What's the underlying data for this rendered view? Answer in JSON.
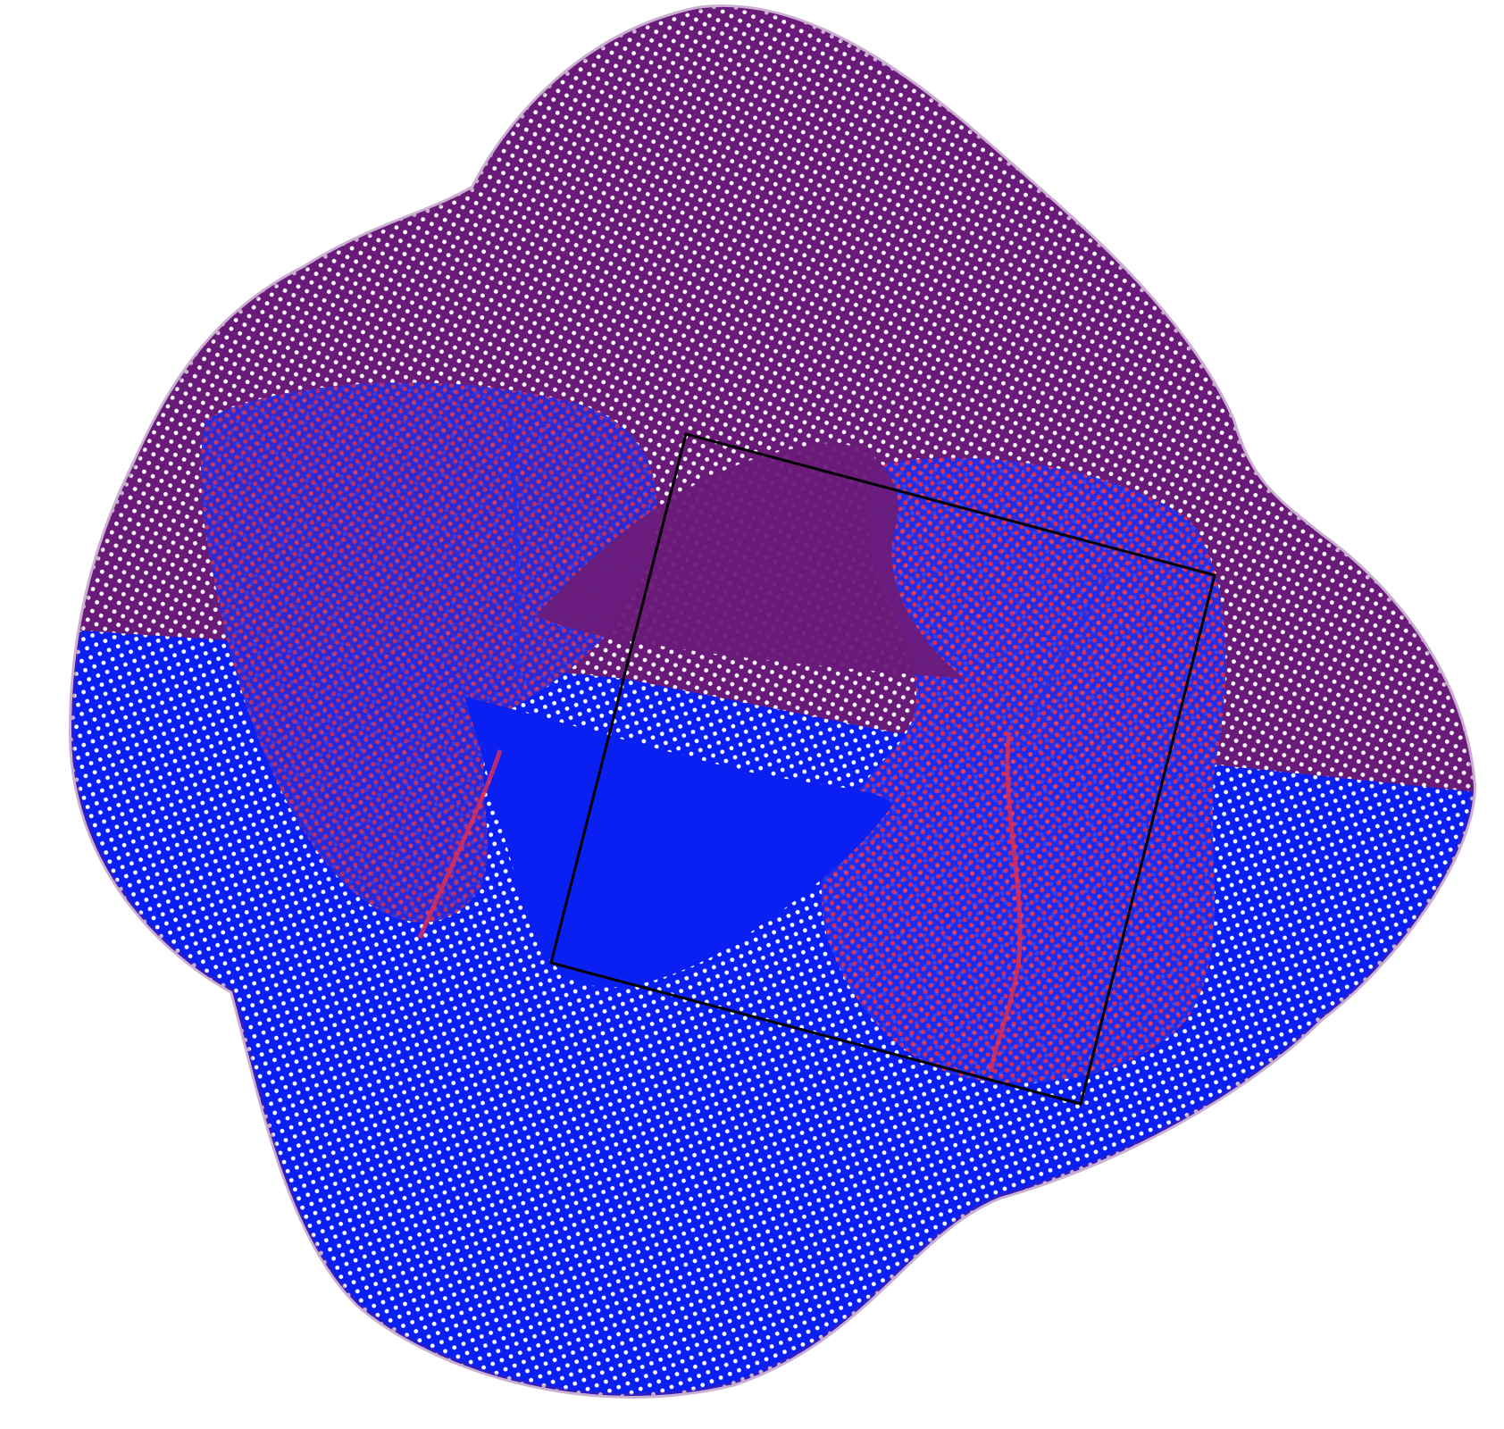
{
  "scene": {
    "colors": {
      "background": "#ffffff",
      "upper_shell": "#6a1b7a",
      "lower_shell": "#0a1ff2",
      "inner_red": "#e3304e",
      "inner_blue": "#1c2ef0",
      "square_outline": "#000000"
    }
  }
}
